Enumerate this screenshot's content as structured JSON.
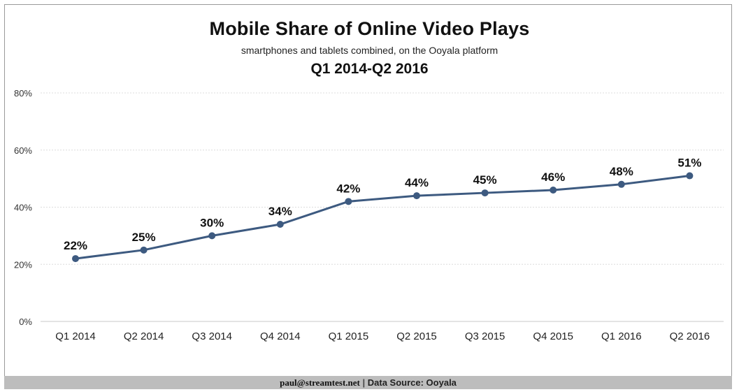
{
  "header": {
    "title": "Mobile Share of Online Video Plays",
    "subtitle": "smartphones and tablets combined, on the Ooyala platform",
    "period": "Q1 2014-Q2 2016"
  },
  "footer": {
    "email": "paul@streamtest.net",
    "separator": "|",
    "source": "Data Source: Ooyala"
  },
  "chart_data": {
    "type": "line",
    "categories": [
      "Q1 2014",
      "Q2 2014",
      "Q3 2014",
      "Q4 2014",
      "Q1 2015",
      "Q2 2015",
      "Q3 2015",
      "Q4 2015",
      "Q1 2016",
      "Q2 2016"
    ],
    "series": [
      {
        "values": [
          22,
          25,
          30,
          34,
          42,
          44,
          45,
          46,
          48,
          51
        ],
        "data_labels": [
          "22%",
          "25%",
          "30%",
          "34%",
          "42%",
          "44%",
          "45%",
          "46%",
          "48%",
          "51%"
        ],
        "color": "#3d5a80"
      }
    ],
    "yticks": [
      0,
      20,
      40,
      60,
      80
    ],
    "ytick_labels": [
      "0%",
      "20%",
      "40%",
      "60%",
      "80%"
    ],
    "ylim": [
      0,
      80
    ],
    "grid": true,
    "legend": "none"
  }
}
